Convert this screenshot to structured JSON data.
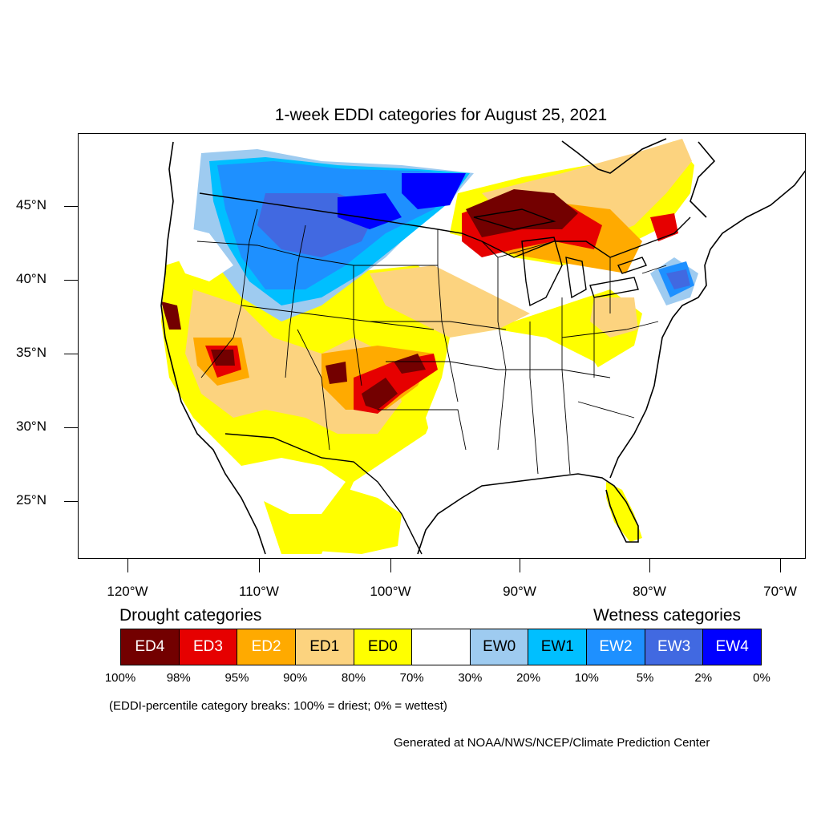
{
  "title": "1-week EDDI categories for August 25, 2021",
  "lat_labels": [
    "45°N",
    "40°N",
    "35°N",
    "30°N",
    "25°N"
  ],
  "lon_labels": [
    "120°W",
    "110°W",
    "100°W",
    "90°W",
    "80°W",
    "70°W"
  ],
  "drought_title": "Drought categories",
  "wetness_title": "Wetness categories",
  "legend": [
    {
      "label": "ED4",
      "color": "#730000",
      "text_color": "#ffffff"
    },
    {
      "label": "ED3",
      "color": "#e60000",
      "text_color": "#ffffff"
    },
    {
      "label": "ED2",
      "color": "#ffaa00",
      "text_color": "#ffffff"
    },
    {
      "label": "ED1",
      "color": "#fcd37f",
      "text_color": "#000000"
    },
    {
      "label": "ED0",
      "color": "#ffff00",
      "text_color": "#000000"
    },
    {
      "label": "",
      "color": "#ffffff",
      "text_color": "#000000"
    },
    {
      "label": "EW0",
      "color": "#9ecbf0",
      "text_color": "#000000"
    },
    {
      "label": "EW1",
      "color": "#00bfff",
      "text_color": "#000000"
    },
    {
      "label": "EW2",
      "color": "#1e90ff",
      "text_color": "#ffffff"
    },
    {
      "label": "EW3",
      "color": "#4169e1",
      "text_color": "#ffffff"
    },
    {
      "label": "EW4",
      "color": "#0000ff",
      "text_color": "#ffffff"
    }
  ],
  "percent_breaks": [
    "100%",
    "98%",
    "95%",
    "90%",
    "80%",
    "70%",
    "30%",
    "20%",
    "10%",
    "5%",
    "2%",
    "0%"
  ],
  "note": "(EDDI-percentile category breaks: 100% = driest; 0% = wettest)",
  "credit": "Generated at NOAA/NWS/NCEP/Climate Prediction Center"
}
